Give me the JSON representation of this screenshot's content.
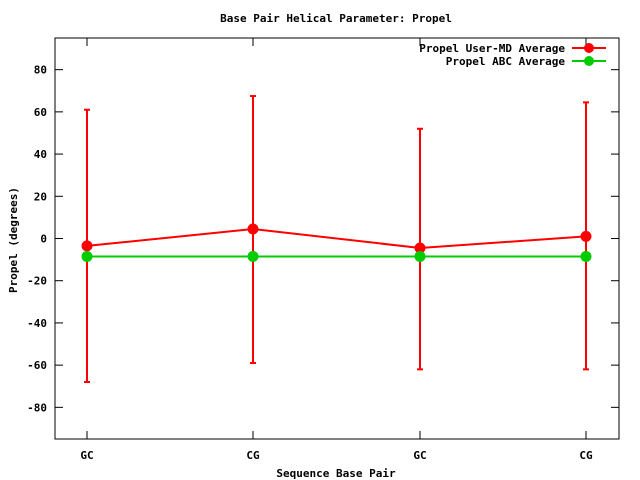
{
  "chart_data": {
    "type": "line",
    "title": "Base Pair Helical Parameter: Propel",
    "xlabel": "Sequence Base Pair",
    "ylabel": "Propel (degrees)",
    "categories": [
      "GC",
      "CG",
      "GC",
      "CG"
    ],
    "ylim": [
      -95,
      95
    ],
    "yticks": [
      -80,
      -60,
      -40,
      -20,
      0,
      20,
      40,
      60,
      80
    ],
    "legend_position": "top-right",
    "grid": false,
    "series": [
      {
        "name": "Propel User-MD Average",
        "color": "#ff0000",
        "values": [
          -3.5,
          4.5,
          -4.5,
          1.0
        ],
        "error_low": [
          -68,
          -59,
          -62,
          -62
        ],
        "error_high": [
          61,
          67.5,
          52,
          64.5
        ]
      },
      {
        "name": "Propel ABC Average",
        "color": "#00cc00",
        "values": [
          -8.5,
          -8.5,
          -8.5,
          -8.5
        ]
      }
    ]
  }
}
